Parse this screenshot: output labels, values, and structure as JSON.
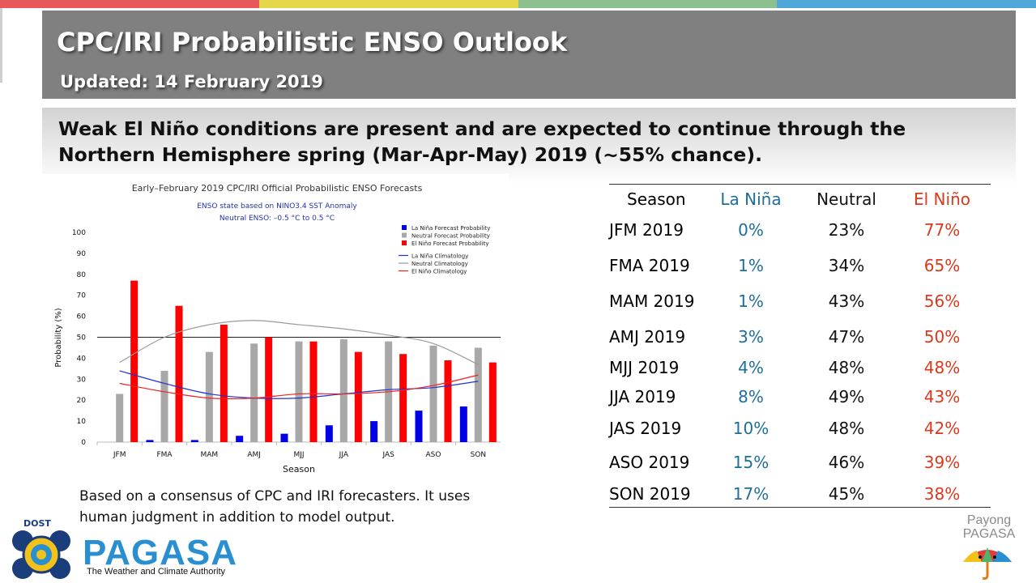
{
  "colors": {
    "topbar": [
      "#e8575a",
      "#e7d64a",
      "#8cc08c",
      "#4fa8d8"
    ],
    "la_nina": "#1f6e9a",
    "el_nino": "#d93a1e",
    "bar_la_nina": "#0000e6",
    "bar_neutral": "#a8a8a8",
    "bar_el_nino": "#ff0000"
  },
  "header": {
    "title": "CPC/IRI Probabilistic ENSO Outlook",
    "updated": "Updated: 14 February 2019"
  },
  "headline": "Weak El Niño conditions are present and are expected to continue through the Northern Hemisphere spring (Mar-Apr-May) 2019 (~55% chance).",
  "chart_data": {
    "type": "bar",
    "title": "Early–February 2019 CPC/IRI Official Probabilistic ENSO Forecasts",
    "subtitle_lines": [
      "ENSO state based on NINO3.4 SST Anomaly",
      "Neutral ENSO: –0.5 °C to 0.5 °C"
    ],
    "xlabel": "Season",
    "ylabel": "Probability (%)",
    "ylim": [
      0,
      100
    ],
    "yticks": [
      0,
      10,
      20,
      30,
      40,
      50,
      60,
      70,
      80,
      90,
      100
    ],
    "categories": [
      "JFM",
      "FMA",
      "MAM",
      "AMJ",
      "MJJ",
      "JJA",
      "JAS",
      "ASO",
      "SON"
    ],
    "reference_line": 50,
    "grid": false,
    "legend_position": "top-right",
    "series": [
      {
        "name": "La Niña Forecast Probability",
        "kind": "bar",
        "color": "#0000e6",
        "values": [
          0,
          1,
          1,
          3,
          4,
          8,
          10,
          15,
          17
        ]
      },
      {
        "name": "Neutral Forecast Probability",
        "kind": "bar",
        "color": "#a8a8a8",
        "values": [
          23,
          34,
          43,
          47,
          48,
          49,
          48,
          46,
          45
        ]
      },
      {
        "name": "El Niño Forecast Probability",
        "kind": "bar",
        "color": "#ff0000",
        "values": [
          77,
          65,
          56,
          50,
          48,
          43,
          42,
          39,
          38
        ]
      },
      {
        "name": "La Niña Climatology",
        "kind": "line",
        "color": "#2233cc",
        "values": [
          34,
          28,
          23,
          21,
          21,
          23,
          25,
          26,
          29
        ]
      },
      {
        "name": "Neutral Climatology",
        "kind": "line",
        "color": "#9a9a9a",
        "values": [
          38,
          50,
          56,
          58,
          56,
          54,
          51,
          47,
          37
        ]
      },
      {
        "name": "El Niño Climatology",
        "kind": "line",
        "color": "#ee2222",
        "values": [
          28,
          24,
          21,
          21,
          23,
          23,
          24,
          27,
          32
        ]
      }
    ]
  },
  "note": "Based on a consensus of CPC and IRI forecasters. It uses human judgment in addition to model output.",
  "table": {
    "headers": [
      "Season",
      "La Niña",
      "Neutral",
      "El Niño"
    ],
    "rows": [
      [
        "JFM 2019",
        "0%",
        "23%",
        "77%"
      ],
      [
        "FMA 2019",
        "1%",
        "34%",
        "65%"
      ],
      [
        "MAM 2019",
        "1%",
        "43%",
        "56%"
      ],
      [
        "AMJ 2019",
        "3%",
        "47%",
        "50%"
      ],
      [
        "MJJ 2019",
        "4%",
        "48%",
        "48%"
      ],
      [
        "JJA 2019",
        "8%",
        "49%",
        "43%"
      ],
      [
        "JAS 2019",
        "10%",
        "48%",
        "42%"
      ],
      [
        "ASO 2019",
        "15%",
        "46%",
        "39%"
      ],
      [
        "SON 2019",
        "17%",
        "45%",
        "38%"
      ]
    ]
  },
  "logo": {
    "dost": "DOST",
    "name": "PAGASA",
    "tagline": "The Weather and Climate Authority",
    "emblem_icon": "pagasa-emblem-icon"
  },
  "payong": {
    "line1": "Payong",
    "line2": "PAGASA",
    "icon": "umbrella-icon"
  }
}
